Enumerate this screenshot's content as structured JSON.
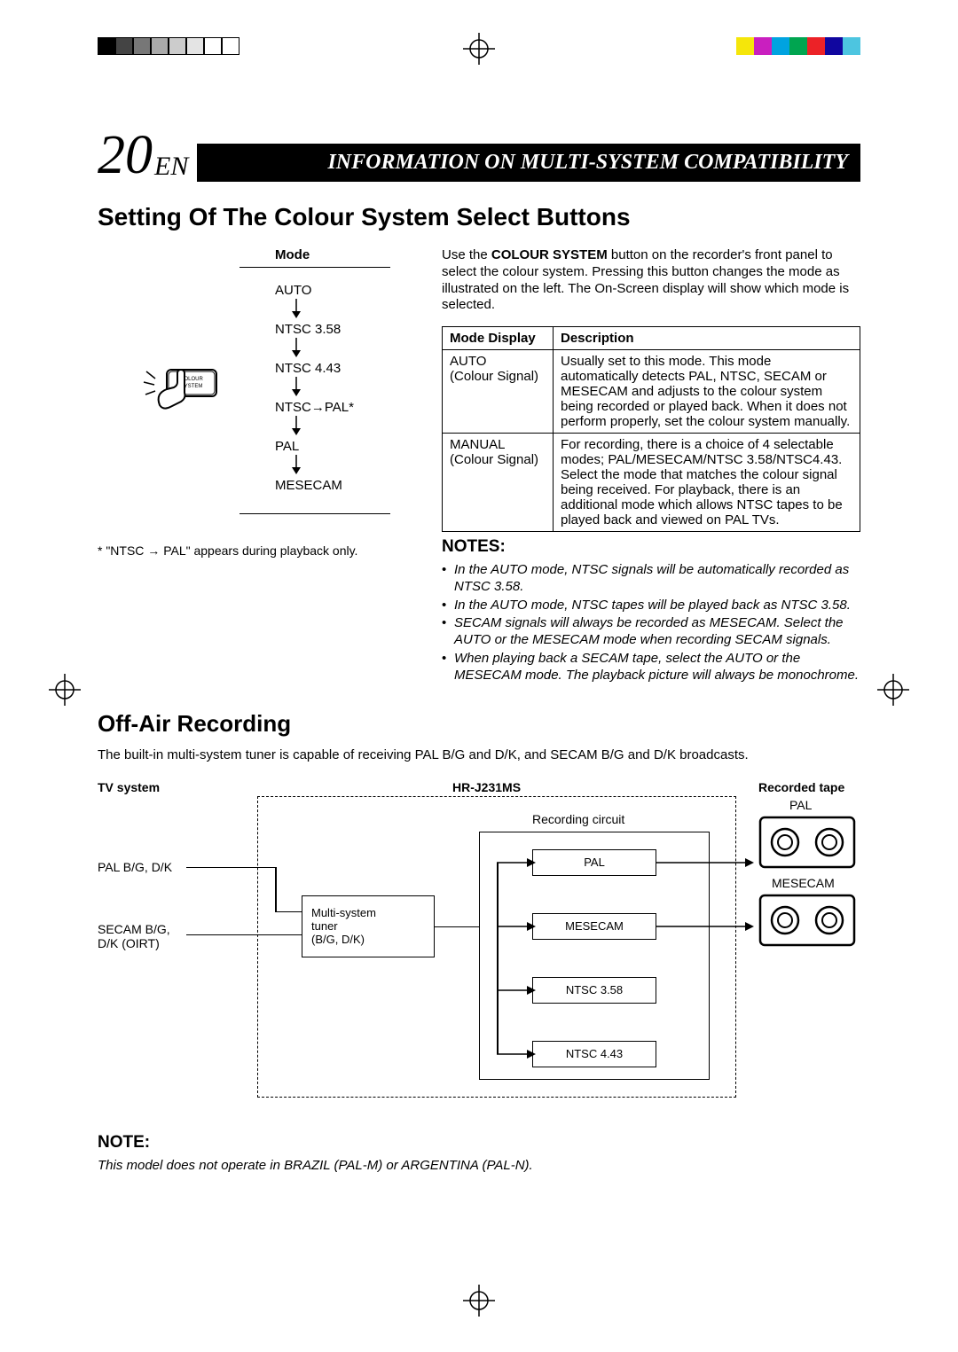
{
  "reg_bw_fills": [
    "#000",
    "#444",
    "#777",
    "#aaa",
    "#ccc",
    "#e4e4e4",
    "#fff",
    "#fff"
  ],
  "reg_color_fills": [
    "#f5e60a",
    "#c91fbf",
    "#00a3e0",
    "#00a550",
    "#ec2227",
    "#10069f",
    "#4dc5e0"
  ],
  "page_num": "20",
  "page_en": "EN",
  "header_title": "INFORMATION ON MULTI-SYSTEM COMPATIBILITY",
  "h1": "Setting Of The Colour System Select Buttons",
  "mode_diagram": {
    "header": "Mode",
    "items": [
      "AUTO",
      "NTSC 3.58",
      "NTSC 4.43",
      "NTSC→PAL*",
      "PAL",
      "MESECAM"
    ],
    "button_label1": "COLOUR",
    "button_label2": "SYSTEM"
  },
  "footnote": "* \"NTSC → PAL\" appears during playback only.",
  "intro": "Use the COLOUR SYSTEM button on the recorder's front panel to select the colour system. Pressing this button changes the mode as illustrated on the left. The On-Screen display will show which mode is selected.",
  "intro_bold": "COLOUR SYSTEM",
  "table": {
    "head": [
      "Mode Display",
      "Description"
    ],
    "rows": [
      {
        "c1a": "AUTO",
        "c1b": "(Colour Signal)",
        "c2": "Usually set to this mode. This mode automatically detects PAL, NTSC, SECAM or MESECAM and adjusts to the colour system being recorded or played back. When it does not perform properly, set the colour system manually."
      },
      {
        "c1a": "MANUAL",
        "c1b": "(Colour Signal)",
        "c2": "For recording, there is a choice of 4 selectable modes; PAL/MESECAM/NTSC 3.58/NTSC4.43. Select the mode that matches the colour signal being received. For playback, there is an additional mode which allows NTSC tapes to be played back and viewed on PAL TVs."
      }
    ]
  },
  "notes_h": "NOTES:",
  "notes": [
    "In the AUTO mode, NTSC signals will be automatically recorded as NTSC 3.58.",
    "In the AUTO mode, NTSC tapes will be played back as NTSC 3.58.",
    "SECAM signals will always be recorded as MESECAM. Select the AUTO or the MESECAM mode when recording SECAM signals.",
    "When playing back a SECAM tape, select the AUTO or the MESECAM mode. The playback picture will always be monochrome."
  ],
  "h3": "Off-Air Recording",
  "offair_p": "The built-in multi-system tuner is capable of receiving PAL B/G and D/K, and SECAM B/G and D/K broadcasts.",
  "flow": {
    "tv_system_h": "TV system",
    "hr_h": "HR-J231MS",
    "tape_h": "Recorded tape",
    "inputs": [
      "PAL B/G, D/K",
      "SECAM B/G,\nD/K (OIRT)"
    ],
    "tuner1": "Multi-system",
    "tuner2": "tuner",
    "tuner3": "(B/G, D/K)",
    "rec_circuit": "Recording circuit",
    "outputs": [
      "PAL",
      "MESECAM",
      "NTSC 3.58",
      "NTSC 4.43"
    ],
    "tape_labels": [
      "PAL",
      "MESECAM"
    ]
  },
  "note_h": "NOTE:",
  "note_p": "This model does not operate in BRAZIL (PAL-M) or ARGENTINA (PAL-N)."
}
